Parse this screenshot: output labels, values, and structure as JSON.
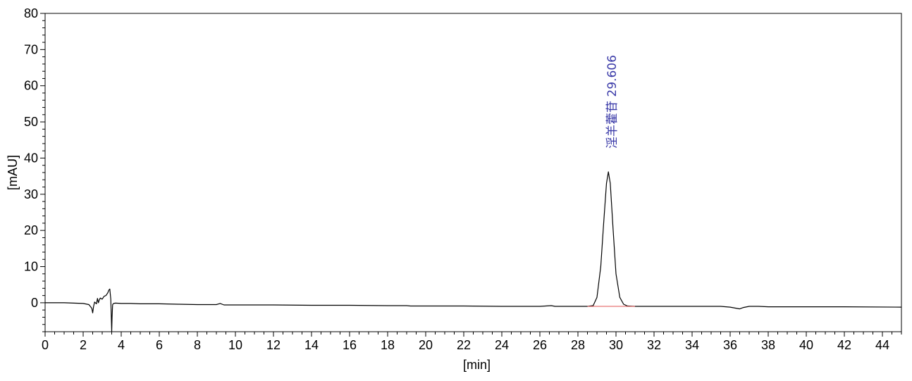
{
  "chart_data": {
    "type": "line",
    "xlabel": "[min]",
    "ylabel": "[mAU]",
    "xlim": [
      0,
      45
    ],
    "ylim": [
      -8,
      80
    ],
    "x_ticks": [
      0,
      2,
      4,
      6,
      8,
      10,
      12,
      14,
      16,
      18,
      20,
      22,
      24,
      26,
      28,
      30,
      32,
      34,
      36,
      38,
      40,
      42,
      44
    ],
    "y_ticks": [
      0,
      10,
      20,
      30,
      40,
      50,
      60,
      70,
      80
    ],
    "grid": false,
    "colors": {
      "trace": "#000000",
      "baseline": "#e05050",
      "peak_label": "#3a3aa8"
    },
    "series": [
      {
        "x": [
          0.0,
          1.0,
          2.0,
          2.3,
          2.45,
          2.5,
          2.55,
          2.6,
          2.7,
          2.75,
          2.8,
          2.85,
          2.9,
          3.0,
          3.1,
          3.2,
          3.3,
          3.35,
          3.4,
          3.45,
          3.5,
          3.52,
          3.55,
          3.6,
          3.7,
          4.0,
          4.5,
          5.0,
          6.0,
          7.0,
          8.0,
          9.0,
          9.2,
          9.4,
          10.0,
          12.0,
          14.0,
          16.0,
          18.0,
          19.0,
          19.2,
          20.0,
          22.0,
          24.0,
          25.0,
          26.0,
          26.6,
          26.8,
          27.0,
          28.0,
          28.5,
          28.8,
          29.0,
          29.2,
          29.35,
          29.5,
          29.6,
          29.7,
          29.85,
          30.0,
          30.2,
          30.4,
          30.6,
          31.0,
          32.0,
          34.0,
          35.5,
          36.0,
          36.2,
          36.4,
          36.5,
          36.7,
          37.0,
          37.5,
          38.0,
          40.0,
          42.0,
          45.0
        ],
        "y": [
          0.0,
          0.0,
          -0.2,
          -0.5,
          -1.5,
          -2.8,
          -1.0,
          0.2,
          -0.3,
          1.2,
          0.0,
          0.8,
          1.3,
          1.0,
          1.8,
          2.0,
          2.8,
          3.5,
          3.8,
          1.0,
          -7.9,
          -4.0,
          -0.5,
          -0.2,
          -0.1,
          -0.2,
          -0.2,
          -0.3,
          -0.3,
          -0.4,
          -0.5,
          -0.5,
          -0.2,
          -0.6,
          -0.6,
          -0.6,
          -0.7,
          -0.7,
          -0.8,
          -0.8,
          -0.9,
          -0.9,
          -0.9,
          -1.0,
          -1.0,
          -1.0,
          -0.8,
          -1.0,
          -1.0,
          -1.0,
          -1.0,
          -0.8,
          1.5,
          10.0,
          22.0,
          33.0,
          36.2,
          33.0,
          20.0,
          8.0,
          1.5,
          -0.4,
          -0.9,
          -1.0,
          -1.0,
          -1.0,
          -1.0,
          -1.2,
          -1.4,
          -1.6,
          -1.7,
          -1.3,
          -1.0,
          -1.0,
          -1.1,
          -1.1,
          -1.1,
          -1.2
        ]
      }
    ],
    "baseline_segment": {
      "x": [
        28.5,
        31.0
      ],
      "y": [
        -1.0,
        -1.0
      ]
    },
    "annotations": [
      {
        "x": 29.6,
        "text": "淫羊藿苷 29.606"
      }
    ]
  }
}
